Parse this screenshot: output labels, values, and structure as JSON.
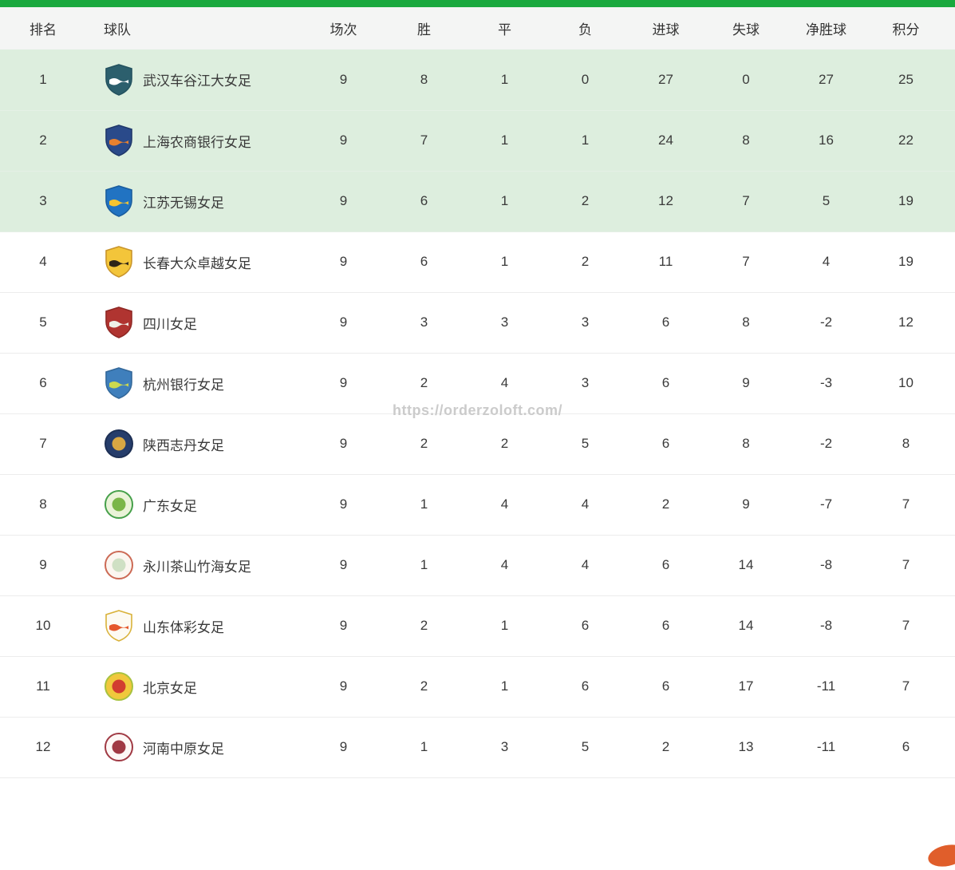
{
  "page": {
    "accent_color": "#1aa93e",
    "highlight_color": "#ddeede",
    "header_bg": "#f4f5f4",
    "corner_color": "#e05e2b"
  },
  "watermark": "https://orderzoloft.com/",
  "table": {
    "headers": [
      "排名",
      "球队",
      "场次",
      "胜",
      "平",
      "负",
      "进球",
      "失球",
      "净胜球",
      "积分"
    ],
    "rows": [
      {
        "rank": "1",
        "team": "武汉车谷江大女足",
        "matches": "9",
        "wins": "8",
        "draws": "1",
        "losses": "0",
        "goals_for": "27",
        "goals_against": "0",
        "goal_diff": "27",
        "points": "25",
        "highlighted": true,
        "logo": {
          "icon": "team-crest-icon",
          "shape": "shield",
          "colors": [
            "#2c5f6d",
            "#ffffff",
            "#24525f"
          ]
        }
      },
      {
        "rank": "2",
        "team": "上海农商银行女足",
        "matches": "9",
        "wins": "7",
        "draws": "1",
        "losses": "1",
        "goals_for": "24",
        "goals_against": "8",
        "goal_diff": "16",
        "points": "22",
        "highlighted": true,
        "logo": {
          "icon": "team-crest-icon",
          "shape": "shield",
          "colors": [
            "#2a4a8a",
            "#e8812f",
            "#20386b"
          ]
        }
      },
      {
        "rank": "3",
        "team": "江苏无锡女足",
        "matches": "9",
        "wins": "6",
        "draws": "1",
        "losses": "2",
        "goals_for": "12",
        "goals_against": "7",
        "goal_diff": "5",
        "points": "19",
        "highlighted": true,
        "logo": {
          "icon": "team-crest-icon",
          "shape": "shield",
          "colors": [
            "#2173c2",
            "#f6c431",
            "#1a5d9e"
          ]
        }
      },
      {
        "rank": "4",
        "team": "长春大众卓越女足",
        "matches": "9",
        "wins": "6",
        "draws": "1",
        "losses": "2",
        "goals_for": "11",
        "goals_against": "7",
        "goal_diff": "4",
        "points": "19",
        "highlighted": false,
        "logo": {
          "icon": "team-crest-icon",
          "shape": "shield",
          "colors": [
            "#f3c53a",
            "#2e2418",
            "#c9952b"
          ]
        }
      },
      {
        "rank": "5",
        "team": "四川女足",
        "matches": "9",
        "wins": "3",
        "draws": "3",
        "losses": "3",
        "goals_for": "6",
        "goals_against": "8",
        "goal_diff": "-2",
        "points": "12",
        "highlighted": false,
        "logo": {
          "icon": "team-crest-icon",
          "shape": "shield",
          "colors": [
            "#b03430",
            "#eef0e8",
            "#8f2824"
          ]
        }
      },
      {
        "rank": "6",
        "team": "杭州银行女足",
        "matches": "9",
        "wins": "2",
        "draws": "4",
        "losses": "3",
        "goals_for": "6",
        "goals_against": "9",
        "goal_diff": "-3",
        "points": "10",
        "highlighted": false,
        "logo": {
          "icon": "team-crest-icon",
          "shape": "shield",
          "colors": [
            "#3f7fbc",
            "#cdd94e",
            "#33689a"
          ]
        }
      },
      {
        "rank": "7",
        "team": "陕西志丹女足",
        "matches": "9",
        "wins": "2",
        "draws": "2",
        "losses": "5",
        "goals_for": "6",
        "goals_against": "8",
        "goal_diff": "-2",
        "points": "8",
        "highlighted": false,
        "logo": {
          "icon": "team-crest-icon",
          "shape": "circle",
          "colors": [
            "#263d6b",
            "#d8a743",
            "#1d2f54"
          ]
        }
      },
      {
        "rank": "8",
        "team": "广东女足",
        "matches": "9",
        "wins": "1",
        "draws": "4",
        "losses": "4",
        "goals_for": "2",
        "goals_against": "9",
        "goal_diff": "-7",
        "points": "7",
        "highlighted": false,
        "logo": {
          "icon": "team-crest-icon",
          "shape": "circle",
          "colors": [
            "#eaf3d8",
            "#7ab648",
            "#46a04a"
          ]
        }
      },
      {
        "rank": "9",
        "team": "永川茶山竹海女足",
        "matches": "9",
        "wins": "1",
        "draws": "4",
        "losses": "4",
        "goals_for": "6",
        "goals_against": "14",
        "goal_diff": "-8",
        "points": "7",
        "highlighted": false,
        "logo": {
          "icon": "team-crest-icon",
          "shape": "circle",
          "colors": [
            "#fbf6f0",
            "#cfe0c4",
            "#cc6a55"
          ]
        }
      },
      {
        "rank": "10",
        "team": "山东体彩女足",
        "matches": "9",
        "wins": "2",
        "draws": "1",
        "losses": "6",
        "goals_for": "6",
        "goals_against": "14",
        "goal_diff": "-8",
        "points": "7",
        "highlighted": false,
        "logo": {
          "icon": "team-crest-icon",
          "shape": "shield",
          "colors": [
            "#fdfaf2",
            "#e5572b",
            "#d9b23a"
          ]
        }
      },
      {
        "rank": "11",
        "team": "北京女足",
        "matches": "9",
        "wins": "2",
        "draws": "1",
        "losses": "6",
        "goals_for": "6",
        "goals_against": "17",
        "goal_diff": "-11",
        "points": "7",
        "highlighted": false,
        "logo": {
          "icon": "team-crest-icon",
          "shape": "circle",
          "colors": [
            "#f0c83c",
            "#d23c30",
            "#a8c23f"
          ]
        }
      },
      {
        "rank": "12",
        "team": "河南中原女足",
        "matches": "9",
        "wins": "1",
        "draws": "3",
        "losses": "5",
        "goals_for": "2",
        "goals_against": "13",
        "goal_diff": "-11",
        "points": "6",
        "highlighted": false,
        "logo": {
          "icon": "team-crest-icon",
          "shape": "circle",
          "colors": [
            "#fdf8f6",
            "#a03a44",
            "#a03a44"
          ]
        }
      }
    ]
  }
}
